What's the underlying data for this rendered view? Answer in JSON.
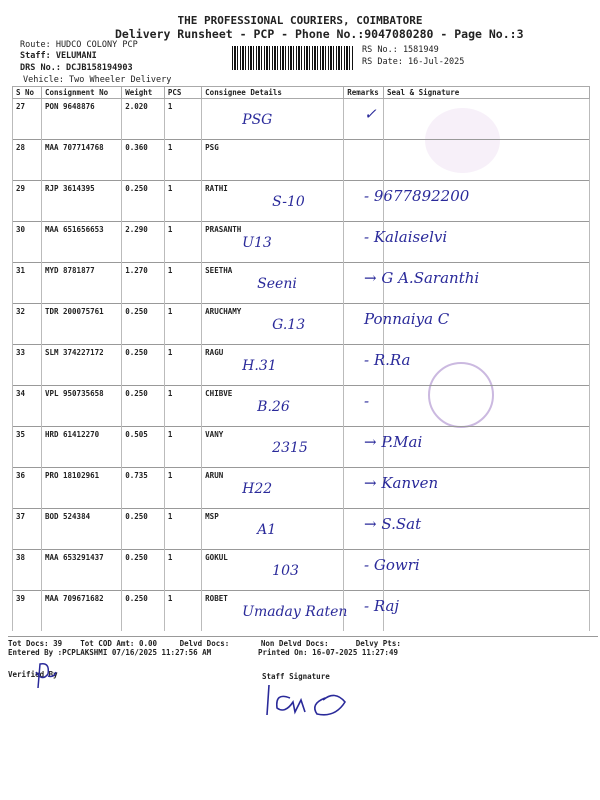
{
  "header": {
    "company": "THE PROFESSIONAL COURIERS, COIMBATORE",
    "subtitle": "Delivery Runsheet - PCP - Phone No.:9047080280 - Page No.:3",
    "route": "Route: HUDCO COLONY PCP",
    "staff": "Staff: VELUMANI",
    "drs": "DRS No.: DCJB158194903",
    "vehicle": "Vehicle: Two Wheeler Delivery",
    "rs_no": "RS No.: 1581949",
    "rs_date": "RS Date: 16-Jul-2025"
  },
  "table": {
    "columns": [
      "S No",
      "Consignment No",
      "Weight",
      "PCS",
      "Consignee Details",
      "Remarks",
      "Seal & Signature"
    ],
    "rows": [
      {
        "sno": "27",
        "cn": "PON 9648876",
        "weight": "2.020",
        "pcs": "1",
        "consignee": "",
        "hw_consignee": "PSG",
        "hw_sign": "✓"
      },
      {
        "sno": "28",
        "cn": "MAA 707714768",
        "weight": "0.360",
        "pcs": "1",
        "consignee": "PSG",
        "hw_consignee": "",
        "hw_sign": ""
      },
      {
        "sno": "29",
        "cn": "RJP 3614395",
        "weight": "0.250",
        "pcs": "1",
        "consignee": "RATHI",
        "hw_consignee": "S-10",
        "hw_sign": "- 9677892200"
      },
      {
        "sno": "30",
        "cn": "MAA 651656653",
        "weight": "2.290",
        "pcs": "1",
        "consignee": "PRASANTH",
        "hw_consignee": "U13",
        "hw_sign": "- Kalaiselvi"
      },
      {
        "sno": "31",
        "cn": "MYD 8781877",
        "weight": "1.270",
        "pcs": "1",
        "consignee": "SEETHA",
        "hw_consignee": "Seeni",
        "hw_sign": "→ G A.Saranthi"
      },
      {
        "sno": "32",
        "cn": "TDR 200075761",
        "weight": "0.250",
        "pcs": "1",
        "consignee": "ARUCHAMY",
        "hw_consignee": "G.13",
        "hw_sign": "Ponnaiya C"
      },
      {
        "sno": "33",
        "cn": "SLM 374227172",
        "weight": "0.250",
        "pcs": "1",
        "consignee": "RAGU",
        "hw_consignee": "H.31",
        "hw_sign": "- R.Ra"
      },
      {
        "sno": "34",
        "cn": "VPL 950735658",
        "weight": "0.250",
        "pcs": "1",
        "consignee": "CHIBVE",
        "hw_consignee": "B.26",
        "hw_sign": "-"
      },
      {
        "sno": "35",
        "cn": "HRD 61412270",
        "weight": "0.505",
        "pcs": "1",
        "consignee": "VANY",
        "hw_consignee": "2315",
        "hw_sign": "→ P.Mai"
      },
      {
        "sno": "36",
        "cn": "PRO 18102961",
        "weight": "0.735",
        "pcs": "1",
        "consignee": "ARUN",
        "hw_consignee": "H22",
        "hw_sign": "→ Kanven"
      },
      {
        "sno": "37",
        "cn": "BOD 524384",
        "weight": "0.250",
        "pcs": "1",
        "consignee": "MSP",
        "hw_consignee": "A1",
        "hw_sign": "→ S.Sat"
      },
      {
        "sno": "38",
        "cn": "MAA 653291437",
        "weight": "0.250",
        "pcs": "1",
        "consignee": "GOKUL",
        "hw_consignee": "103",
        "hw_sign": "- Gowri"
      },
      {
        "sno": "39",
        "cn": "MAA 709671682",
        "weight": "0.250",
        "pcs": "1",
        "consignee": "ROBET",
        "hw_consignee": "Umaday Raten",
        "hw_sign": "- Raj"
      }
    ]
  },
  "footer": {
    "tot_docs": "Tot Docs:  39",
    "tot_cod": "Tot COD Amt:    0.00",
    "delvd": "Delvd Docs:",
    "non_delvd": "Non Delvd Docs:",
    "delvy_pts": "Delvy Pts:",
    "entered_by": "Entered By :PCPLAKSHMI 07/16/2025 11:27:56 AM",
    "printed_on": "Printed On: 16-07-2025 11:27:49",
    "verified_by": "Verified By",
    "staff_signature": "Staff Signature"
  },
  "colors": {
    "ink": "#2a2a9a",
    "stamp": "#a98acb"
  }
}
